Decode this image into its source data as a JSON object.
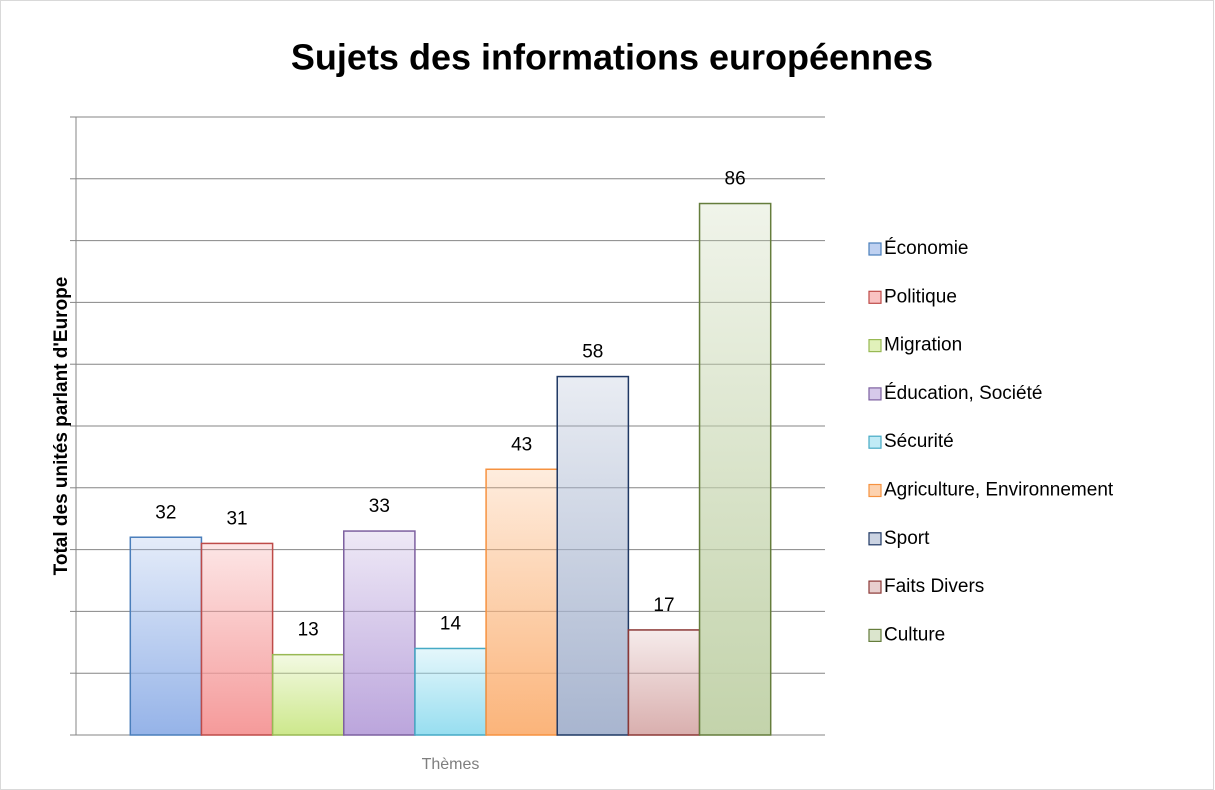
{
  "chart_data": {
    "type": "bar",
    "title": "Sujets des informations européennes",
    "y_label": "Total des unités parlant d'Europe",
    "categories": [
      "Thèmes"
    ],
    "series": [
      {
        "name": "Économie",
        "color": "#95b3e8",
        "edgecolor": "#4a7ebb",
        "values": [
          32
        ]
      },
      {
        "name": "Politique",
        "color": "#f59a9a",
        "edgecolor": "#be4b48",
        "values": [
          31
        ]
      },
      {
        "name": "Migration",
        "color": "#cde88c",
        "edgecolor": "#98b954",
        "values": [
          13
        ]
      },
      {
        "name": "Éducation, Société",
        "color": "#bba5dc",
        "edgecolor": "#7d60a0",
        "values": [
          33
        ]
      },
      {
        "name": "Sécurité",
        "color": "#97def0",
        "edgecolor": "#46aac5",
        "values": [
          14
        ]
      },
      {
        "name": "Agriculture, Environnement",
        "color": "#fbb47a",
        "edgecolor": "#f69240",
        "values": [
          43
        ]
      },
      {
        "name": "Sport",
        "color": "#a8b5cf",
        "edgecolor": "#1f3864",
        "values": [
          58
        ]
      },
      {
        "name": "Faits Divers",
        "color": "#d9afae",
        "edgecolor": "#8c3836",
        "values": [
          17
        ]
      },
      {
        "name": "Culture",
        "color": "#c3d3ab",
        "edgecolor": "#657d3c",
        "values": [
          86
        ]
      }
    ],
    "ylim": [
      0,
      100
    ],
    "yticks": [
      0,
      10,
      20,
      30,
      40,
      50,
      60,
      70,
      80,
      90,
      100
    ],
    "grid": true,
    "legend": "right"
  }
}
